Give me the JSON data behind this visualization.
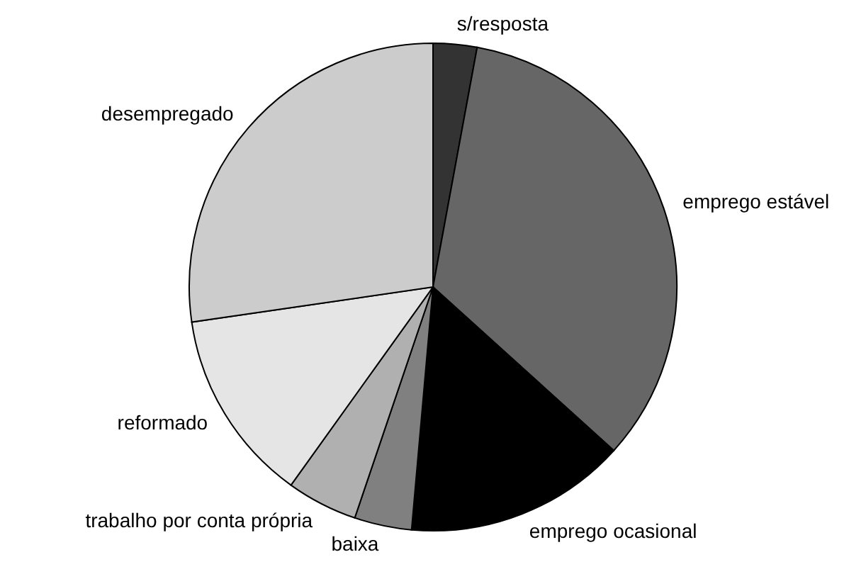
{
  "chart_data": {
    "type": "pie",
    "categories": [
      "s/resposta",
      "emprego estável",
      "emprego ocasional",
      "baixa",
      "trabalho por conta própria",
      "reformado",
      "desempregado"
    ],
    "values": [
      2.9,
      33.8,
      14.7,
      3.8,
      4.7,
      12.8,
      27.3
    ],
    "colors": [
      "#333333",
      "#666666",
      "#000000",
      "#808080",
      "#b0b0b0",
      "#e5e5e5",
      "#cccccc"
    ]
  }
}
